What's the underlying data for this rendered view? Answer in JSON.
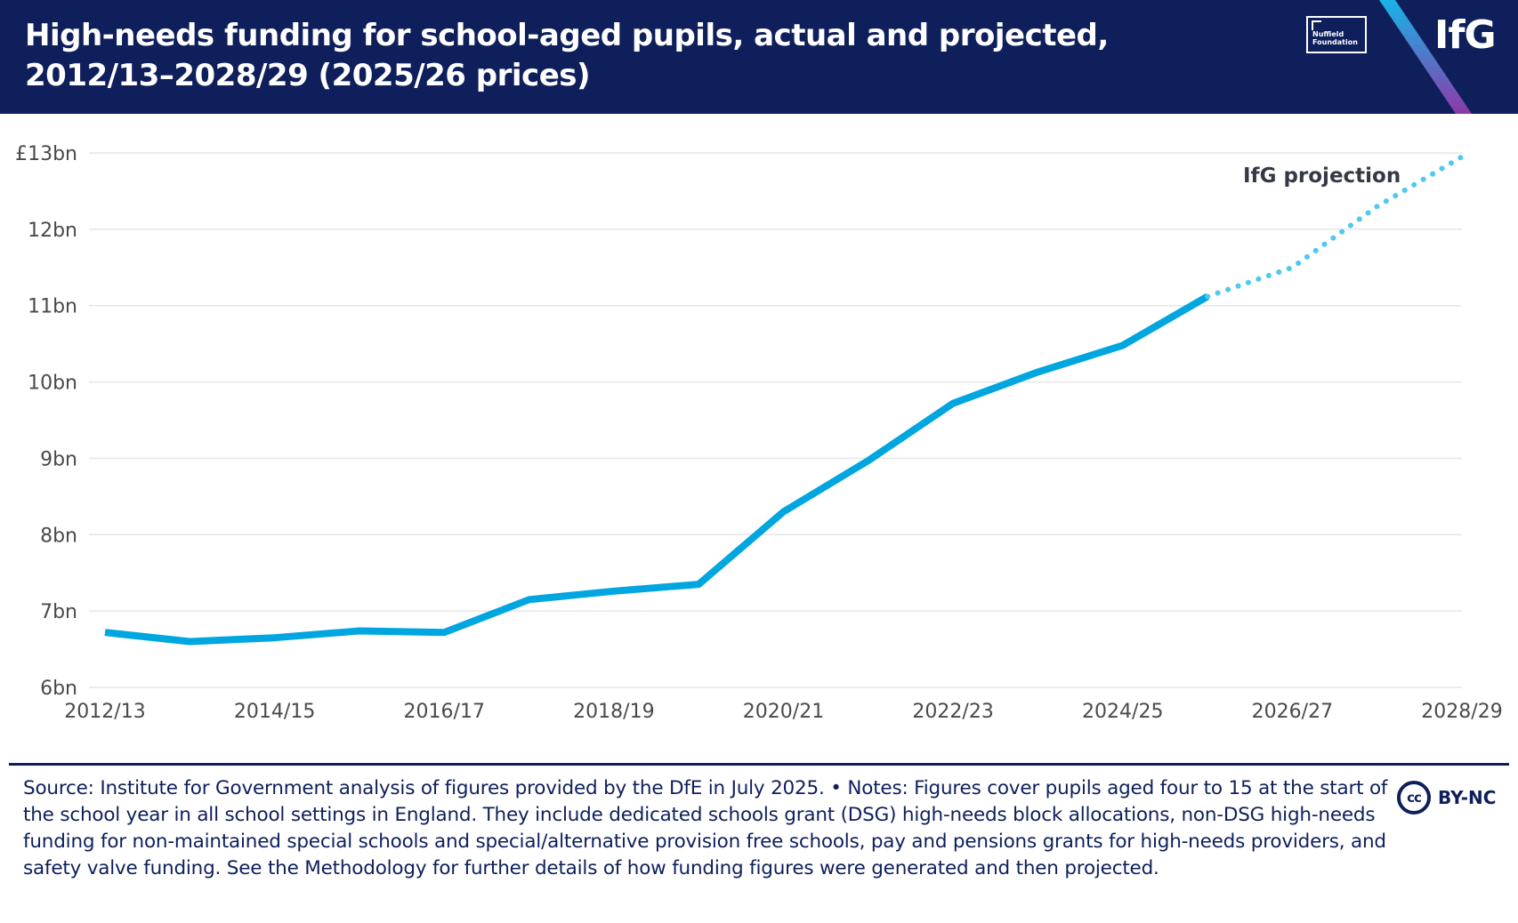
{
  "header": {
    "title": "High-needs funding for school-aged pupils, actual and projected, 2012/13–2028/29 (2025/26 prices)",
    "nuffield_line1": "Nuffield",
    "nuffield_line2": "Foundation",
    "logo_text": "IfG"
  },
  "colors": {
    "header_bg": "#0e1f5b",
    "actual_line": "#00a6e0",
    "projection_line": "#4fc9f0",
    "grid": "#e6e6e6",
    "axis_text": "#4a4a4a"
  },
  "chart_data": {
    "type": "line",
    "title": "High-needs funding for school-aged pupils, actual and projected, 2012/13–2028/29 (2025/26 prices)",
    "xlabel": "",
    "ylabel": "",
    "ylim": [
      6,
      13
    ],
    "y_ticks": [
      {
        "value": 6,
        "label": "6bn"
      },
      {
        "value": 7,
        "label": "7bn"
      },
      {
        "value": 8,
        "label": "8bn"
      },
      {
        "value": 9,
        "label": "9bn"
      },
      {
        "value": 10,
        "label": "10bn"
      },
      {
        "value": 11,
        "label": "11bn"
      },
      {
        "value": 12,
        "label": "12bn"
      },
      {
        "value": 13,
        "label": "£13bn"
      }
    ],
    "categories": [
      "2012/13",
      "2013/14",
      "2014/15",
      "2015/16",
      "2016/17",
      "2017/18",
      "2018/19",
      "2019/20",
      "2020/21",
      "2021/22",
      "2022/23",
      "2023/24",
      "2024/25",
      "2025/26",
      "2026/27",
      "2027/28",
      "2028/29"
    ],
    "x_tick_labels": [
      "2012/13",
      "2014/15",
      "2016/17",
      "2018/19",
      "2020/21",
      "2022/23",
      "2024/25",
      "2026/27",
      "2028/29"
    ],
    "series": [
      {
        "name": "Actual",
        "style": "solid",
        "values": [
          6.72,
          6.6,
          6.65,
          6.74,
          6.72,
          7.15,
          7.26,
          7.35,
          8.3,
          8.97,
          9.72,
          10.13,
          10.48,
          11.12,
          null,
          null,
          null
        ]
      },
      {
        "name": "IfG projection",
        "style": "dotted",
        "values": [
          null,
          null,
          null,
          null,
          null,
          null,
          null,
          null,
          null,
          null,
          null,
          null,
          null,
          11.12,
          11.5,
          12.3,
          12.95
        ]
      }
    ],
    "annotations": [
      {
        "text": "IfG projection",
        "series": "IfG projection"
      }
    ]
  },
  "footer": {
    "source": "Source: Institute for Government analysis of figures provided by the DfE in July 2025. • Notes: Figures cover pupils aged four to 15 at the start of the school year in all school settings in England. They include dedicated schools grant (DSG) high-needs block allocations, non-DSG high-needs funding for non-maintained special schools and special/alternative provision free schools, pay and pensions grants for high-needs providers, and safety valve funding. See the Methodology for further details of how funding figures were generated and then projected.",
    "license_icon": "cc",
    "license_text": "BY-NC"
  }
}
